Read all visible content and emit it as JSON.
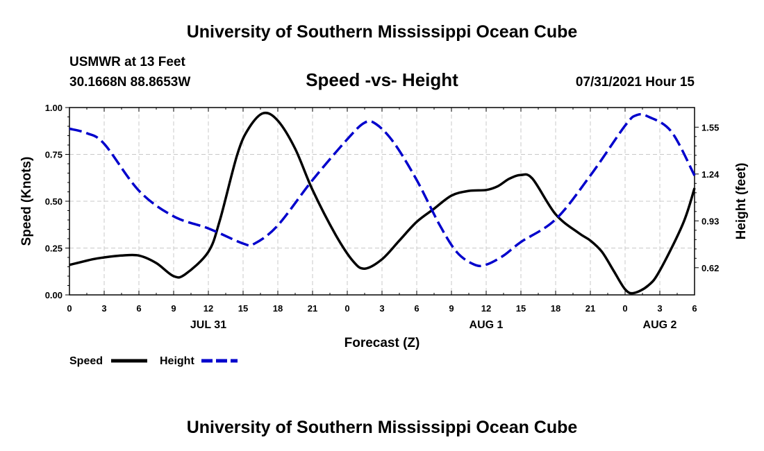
{
  "header": {
    "title": "University of Southern Mississippi Ocean Cube",
    "station": "USMWR at 13 Feet",
    "coords": "30.1668N  88.8653W",
    "datetime": "07/31/2021 Hour 15"
  },
  "footer": {
    "title": "University of Southern Mississippi Ocean Cube"
  },
  "chart_data": {
    "type": "line",
    "title": "Speed -vs- Height",
    "xlabel": "Forecast (Z)",
    "ylabel": "Speed (Knots)",
    "y2label": "Height (feet)",
    "x_range_hours": [
      0,
      54
    ],
    "x_ticks": [
      {
        "h": 0,
        "label": "0"
      },
      {
        "h": 3,
        "label": "3"
      },
      {
        "h": 6,
        "label": "6"
      },
      {
        "h": 9,
        "label": "9"
      },
      {
        "h": 12,
        "label": "12"
      },
      {
        "h": 15,
        "label": "15"
      },
      {
        "h": 18,
        "label": "18"
      },
      {
        "h": 21,
        "label": "21"
      },
      {
        "h": 24,
        "label": "0"
      },
      {
        "h": 27,
        "label": "3"
      },
      {
        "h": 30,
        "label": "6"
      },
      {
        "h": 33,
        "label": "9"
      },
      {
        "h": 36,
        "label": "12"
      },
      {
        "h": 39,
        "label": "15"
      },
      {
        "h": 42,
        "label": "18"
      },
      {
        "h": 45,
        "label": "21"
      },
      {
        "h": 48,
        "label": "0"
      },
      {
        "h": 51,
        "label": "3"
      },
      {
        "h": 54,
        "label": "6"
      }
    ],
    "date_labels": [
      {
        "h": 12,
        "label": "JUL 31"
      },
      {
        "h": 36,
        "label": "AUG 1"
      },
      {
        "h": 51,
        "label": "AUG 2"
      }
    ],
    "ylim": [
      0,
      1
    ],
    "y_ticks": [
      {
        "v": 0,
        "label": "0.00"
      },
      {
        "v": 0.25,
        "label": "0.25"
      },
      {
        "v": 0.5,
        "label": "0.50"
      },
      {
        "v": 0.75,
        "label": "0.75"
      },
      {
        "v": 1,
        "label": "1.00"
      }
    ],
    "y2lim": [
      0.44,
      1.68
    ],
    "y2_ticks": [
      {
        "v": 0.62,
        "label": "0.62"
      },
      {
        "v": 0.93,
        "label": "0.93"
      },
      {
        "v": 1.24,
        "label": "1.24"
      },
      {
        "v": 1.55,
        "label": "1.55"
      }
    ],
    "grid": true,
    "series": [
      {
        "name": "Speed",
        "axis": "left",
        "color": "#000000",
        "style": "solid",
        "points": [
          [
            0,
            0.16
          ],
          [
            2,
            0.19
          ],
          [
            3,
            0.2
          ],
          [
            4.5,
            0.21
          ],
          [
            6,
            0.21
          ],
          [
            7.5,
            0.17
          ],
          [
            9,
            0.1
          ],
          [
            10,
            0.11
          ],
          [
            12,
            0.23
          ],
          [
            13,
            0.4
          ],
          [
            14.5,
            0.75
          ],
          [
            15.5,
            0.89
          ],
          [
            16.75,
            0.97
          ],
          [
            18,
            0.93
          ],
          [
            19.5,
            0.78
          ],
          [
            21,
            0.56
          ],
          [
            23,
            0.32
          ],
          [
            24.5,
            0.18
          ],
          [
            25.5,
            0.14
          ],
          [
            27,
            0.19
          ],
          [
            28.5,
            0.29
          ],
          [
            30,
            0.39
          ],
          [
            31.5,
            0.46
          ],
          [
            33,
            0.53
          ],
          [
            34.5,
            0.555
          ],
          [
            36,
            0.56
          ],
          [
            37,
            0.58
          ],
          [
            38,
            0.62
          ],
          [
            39,
            0.64
          ],
          [
            40,
            0.62
          ],
          [
            42,
            0.43
          ],
          [
            44,
            0.33
          ],
          [
            45,
            0.29
          ],
          [
            46,
            0.23
          ],
          [
            47,
            0.13
          ],
          [
            48,
            0.03
          ],
          [
            48.75,
            0.01
          ],
          [
            50,
            0.05
          ],
          [
            51,
            0.13
          ],
          [
            53,
            0.38
          ],
          [
            54,
            0.57
          ]
        ]
      },
      {
        "name": "Height",
        "axis": "right",
        "color": "#0000cc",
        "style": "dashed",
        "points": [
          [
            0,
            1.54
          ],
          [
            1.5,
            1.51
          ],
          [
            3,
            1.44
          ],
          [
            6,
            1.13
          ],
          [
            9,
            0.96
          ],
          [
            12,
            0.88
          ],
          [
            15,
            0.78
          ],
          [
            16,
            0.78
          ],
          [
            18,
            0.9
          ],
          [
            21,
            1.2
          ],
          [
            24,
            1.47
          ],
          [
            25.5,
            1.58
          ],
          [
            26.5,
            1.57
          ],
          [
            28,
            1.45
          ],
          [
            30,
            1.2
          ],
          [
            32,
            0.9
          ],
          [
            33.5,
            0.72
          ],
          [
            35,
            0.64
          ],
          [
            36,
            0.64
          ],
          [
            37.5,
            0.7
          ],
          [
            39,
            0.79
          ],
          [
            42,
            0.94
          ],
          [
            45,
            1.23
          ],
          [
            48,
            1.56
          ],
          [
            49,
            1.63
          ],
          [
            50,
            1.62
          ],
          [
            52,
            1.52
          ],
          [
            54,
            1.23
          ]
        ]
      }
    ],
    "legend": [
      {
        "label": "Speed",
        "color": "#000000",
        "style": "solid"
      },
      {
        "label": "Height",
        "color": "#0000cc",
        "style": "dashed"
      }
    ]
  }
}
